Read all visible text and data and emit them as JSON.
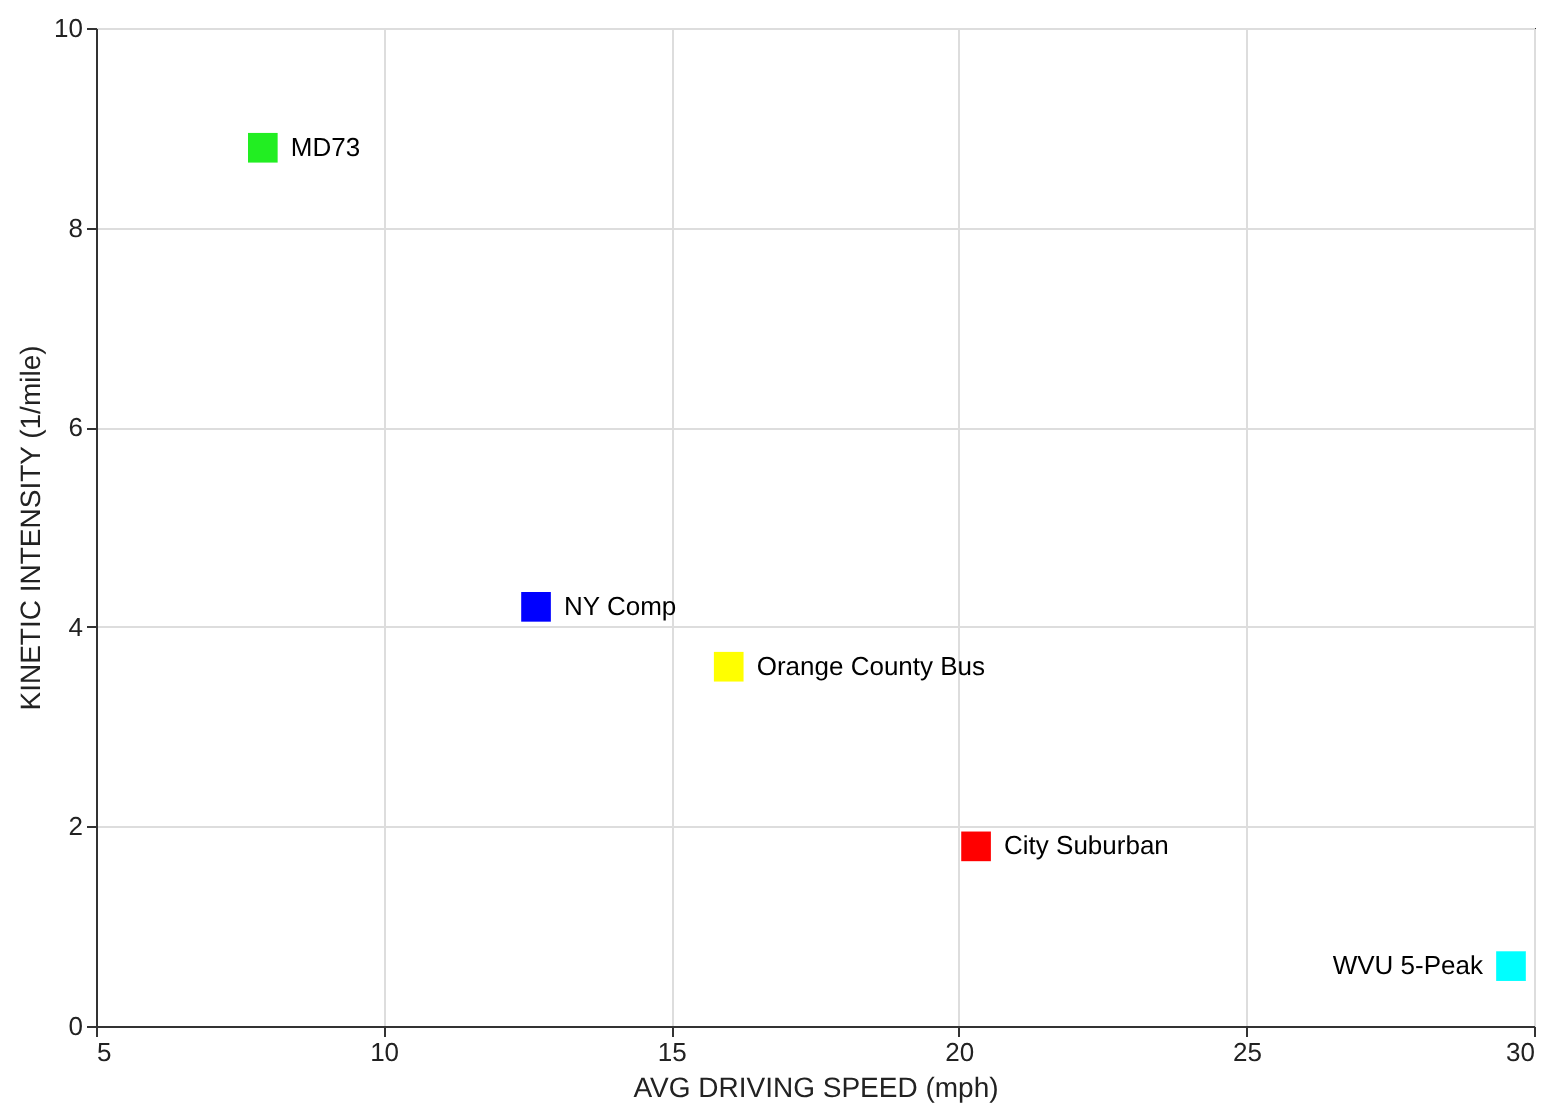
{
  "chart_data": {
    "type": "scatter",
    "xlabel": "AVG DRIVING SPEED (mph)",
    "ylabel": "KINETIC INTENSITY (1/mile)",
    "xlim": [
      5,
      30
    ],
    "xticks": [
      5,
      10,
      15,
      20,
      25,
      30
    ],
    "ylim": [
      0,
      10
    ],
    "yticks": [
      0,
      2,
      4,
      6,
      8,
      10
    ],
    "grid": true,
    "legend": false,
    "marker": "square",
    "series": [
      {
        "name": "MD73",
        "color": "#22ee22",
        "x": [
          7.9
        ],
        "values": [
          8.8
        ]
      },
      {
        "name": "NY Comp",
        "color": "#0000ff",
        "x": [
          12.65
        ],
        "values": [
          4.2
        ]
      },
      {
        "name": "Orange County Bus",
        "color": "#ffff00",
        "x": [
          16.0
        ],
        "values": [
          3.6
        ]
      },
      {
        "name": "City Suburban",
        "color": "#ff0000",
        "x": [
          20.3
        ],
        "values": [
          1.8
        ]
      },
      {
        "name": "WVU 5-Peak",
        "color": "#00ffff",
        "x": [
          29.6
        ],
        "values": [
          0.6
        ]
      }
    ]
  }
}
